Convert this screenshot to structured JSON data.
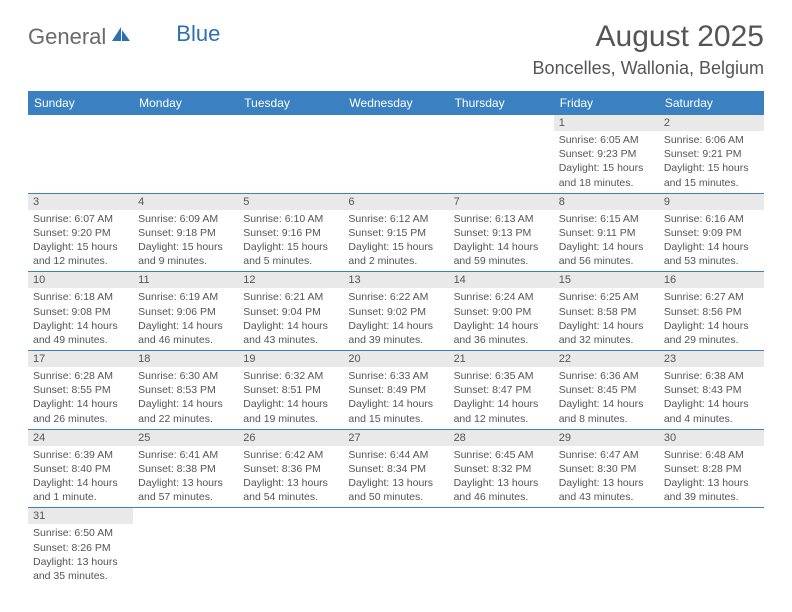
{
  "logo": {
    "part1": "General",
    "part2": "Blue"
  },
  "title": "August 2025",
  "location": "Boncelles, Wallonia, Belgium",
  "colors": {
    "header_bg": "#3b81c2",
    "header_text": "#ffffff",
    "daynum_bg": "#e9e9e9",
    "row_border": "#3b81c2",
    "logo_gray": "#6a6a6a",
    "logo_blue": "#2d6fb3",
    "body_text": "#555555",
    "page_bg": "#ffffff"
  },
  "day_headers": [
    "Sunday",
    "Monday",
    "Tuesday",
    "Wednesday",
    "Thursday",
    "Friday",
    "Saturday"
  ],
  "weeks": [
    [
      null,
      null,
      null,
      null,
      null,
      {
        "n": "1",
        "sr": "Sunrise: 6:05 AM",
        "ss": "Sunset: 9:23 PM",
        "dl": "Daylight: 15 hours and 18 minutes."
      },
      {
        "n": "2",
        "sr": "Sunrise: 6:06 AM",
        "ss": "Sunset: 9:21 PM",
        "dl": "Daylight: 15 hours and 15 minutes."
      }
    ],
    [
      {
        "n": "3",
        "sr": "Sunrise: 6:07 AM",
        "ss": "Sunset: 9:20 PM",
        "dl": "Daylight: 15 hours and 12 minutes."
      },
      {
        "n": "4",
        "sr": "Sunrise: 6:09 AM",
        "ss": "Sunset: 9:18 PM",
        "dl": "Daylight: 15 hours and 9 minutes."
      },
      {
        "n": "5",
        "sr": "Sunrise: 6:10 AM",
        "ss": "Sunset: 9:16 PM",
        "dl": "Daylight: 15 hours and 5 minutes."
      },
      {
        "n": "6",
        "sr": "Sunrise: 6:12 AM",
        "ss": "Sunset: 9:15 PM",
        "dl": "Daylight: 15 hours and 2 minutes."
      },
      {
        "n": "7",
        "sr": "Sunrise: 6:13 AM",
        "ss": "Sunset: 9:13 PM",
        "dl": "Daylight: 14 hours and 59 minutes."
      },
      {
        "n": "8",
        "sr": "Sunrise: 6:15 AM",
        "ss": "Sunset: 9:11 PM",
        "dl": "Daylight: 14 hours and 56 minutes."
      },
      {
        "n": "9",
        "sr": "Sunrise: 6:16 AM",
        "ss": "Sunset: 9:09 PM",
        "dl": "Daylight: 14 hours and 53 minutes."
      }
    ],
    [
      {
        "n": "10",
        "sr": "Sunrise: 6:18 AM",
        "ss": "Sunset: 9:08 PM",
        "dl": "Daylight: 14 hours and 49 minutes."
      },
      {
        "n": "11",
        "sr": "Sunrise: 6:19 AM",
        "ss": "Sunset: 9:06 PM",
        "dl": "Daylight: 14 hours and 46 minutes."
      },
      {
        "n": "12",
        "sr": "Sunrise: 6:21 AM",
        "ss": "Sunset: 9:04 PM",
        "dl": "Daylight: 14 hours and 43 minutes."
      },
      {
        "n": "13",
        "sr": "Sunrise: 6:22 AM",
        "ss": "Sunset: 9:02 PM",
        "dl": "Daylight: 14 hours and 39 minutes."
      },
      {
        "n": "14",
        "sr": "Sunrise: 6:24 AM",
        "ss": "Sunset: 9:00 PM",
        "dl": "Daylight: 14 hours and 36 minutes."
      },
      {
        "n": "15",
        "sr": "Sunrise: 6:25 AM",
        "ss": "Sunset: 8:58 PM",
        "dl": "Daylight: 14 hours and 32 minutes."
      },
      {
        "n": "16",
        "sr": "Sunrise: 6:27 AM",
        "ss": "Sunset: 8:56 PM",
        "dl": "Daylight: 14 hours and 29 minutes."
      }
    ],
    [
      {
        "n": "17",
        "sr": "Sunrise: 6:28 AM",
        "ss": "Sunset: 8:55 PM",
        "dl": "Daylight: 14 hours and 26 minutes."
      },
      {
        "n": "18",
        "sr": "Sunrise: 6:30 AM",
        "ss": "Sunset: 8:53 PM",
        "dl": "Daylight: 14 hours and 22 minutes."
      },
      {
        "n": "19",
        "sr": "Sunrise: 6:32 AM",
        "ss": "Sunset: 8:51 PM",
        "dl": "Daylight: 14 hours and 19 minutes."
      },
      {
        "n": "20",
        "sr": "Sunrise: 6:33 AM",
        "ss": "Sunset: 8:49 PM",
        "dl": "Daylight: 14 hours and 15 minutes."
      },
      {
        "n": "21",
        "sr": "Sunrise: 6:35 AM",
        "ss": "Sunset: 8:47 PM",
        "dl": "Daylight: 14 hours and 12 minutes."
      },
      {
        "n": "22",
        "sr": "Sunrise: 6:36 AM",
        "ss": "Sunset: 8:45 PM",
        "dl": "Daylight: 14 hours and 8 minutes."
      },
      {
        "n": "23",
        "sr": "Sunrise: 6:38 AM",
        "ss": "Sunset: 8:43 PM",
        "dl": "Daylight: 14 hours and 4 minutes."
      }
    ],
    [
      {
        "n": "24",
        "sr": "Sunrise: 6:39 AM",
        "ss": "Sunset: 8:40 PM",
        "dl": "Daylight: 14 hours and 1 minute."
      },
      {
        "n": "25",
        "sr": "Sunrise: 6:41 AM",
        "ss": "Sunset: 8:38 PM",
        "dl": "Daylight: 13 hours and 57 minutes."
      },
      {
        "n": "26",
        "sr": "Sunrise: 6:42 AM",
        "ss": "Sunset: 8:36 PM",
        "dl": "Daylight: 13 hours and 54 minutes."
      },
      {
        "n": "27",
        "sr": "Sunrise: 6:44 AM",
        "ss": "Sunset: 8:34 PM",
        "dl": "Daylight: 13 hours and 50 minutes."
      },
      {
        "n": "28",
        "sr": "Sunrise: 6:45 AM",
        "ss": "Sunset: 8:32 PM",
        "dl": "Daylight: 13 hours and 46 minutes."
      },
      {
        "n": "29",
        "sr": "Sunrise: 6:47 AM",
        "ss": "Sunset: 8:30 PM",
        "dl": "Daylight: 13 hours and 43 minutes."
      },
      {
        "n": "30",
        "sr": "Sunrise: 6:48 AM",
        "ss": "Sunset: 8:28 PM",
        "dl": "Daylight: 13 hours and 39 minutes."
      }
    ],
    [
      {
        "n": "31",
        "sr": "Sunrise: 6:50 AM",
        "ss": "Sunset: 8:26 PM",
        "dl": "Daylight: 13 hours and 35 minutes."
      },
      null,
      null,
      null,
      null,
      null,
      null
    ]
  ]
}
